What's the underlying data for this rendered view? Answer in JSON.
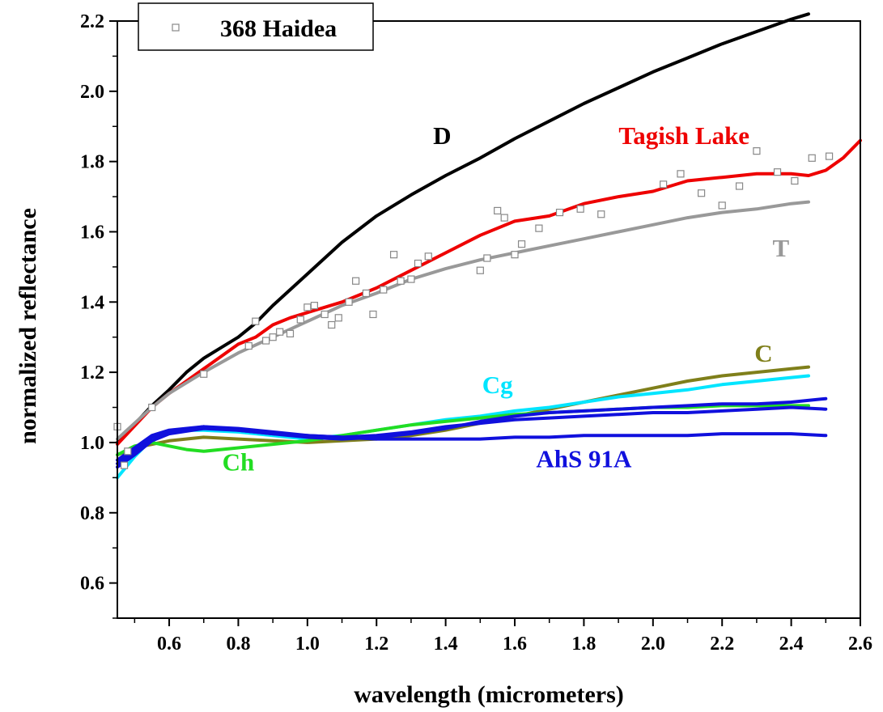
{
  "chart_data": {
    "type": "line",
    "xlabel": "wavelength (micrometers)",
    "ylabel": "normalized reflectance",
    "xlim": [
      0.45,
      2.6
    ],
    "ylim": [
      0.5,
      2.2
    ],
    "xticks": [
      0.6,
      0.8,
      1.0,
      1.2,
      1.4,
      1.6,
      1.8,
      2.0,
      2.2,
      2.4,
      2.6
    ],
    "xtick_labels": [
      "0.6",
      "0.8",
      "1.0",
      "1.2",
      "1.4",
      "1.6",
      "1.8",
      "2.0",
      "2.2",
      "2.4",
      "2.6"
    ],
    "yticks": [
      0.6,
      0.8,
      1.0,
      1.2,
      1.4,
      1.6,
      1.8,
      2.0,
      2.2
    ],
    "ytick_labels": [
      "0.6",
      "0.8",
      "1.0",
      "1.2",
      "1.4",
      "1.6",
      "1.8",
      "2.0",
      "2.2"
    ],
    "legend": {
      "position": "top-left",
      "entries": [
        {
          "name": "368 Haidea",
          "marker": "open-square",
          "color": "#888888"
        }
      ]
    },
    "scatter_series": {
      "name": "368 Haidea",
      "color": "#888888",
      "points": [
        [
          0.45,
          1.045
        ],
        [
          0.47,
          0.935
        ],
        [
          0.48,
          0.975
        ],
        [
          0.55,
          1.1
        ],
        [
          0.7,
          1.195
        ],
        [
          0.83,
          1.275
        ],
        [
          0.85,
          1.345
        ],
        [
          0.88,
          1.29
        ],
        [
          0.9,
          1.3
        ],
        [
          0.92,
          1.315
        ],
        [
          0.95,
          1.31
        ],
        [
          0.98,
          1.35
        ],
        [
          1.0,
          1.385
        ],
        [
          1.02,
          1.39
        ],
        [
          1.05,
          1.365
        ],
        [
          1.07,
          1.335
        ],
        [
          1.09,
          1.355
        ],
        [
          1.12,
          1.4
        ],
        [
          1.14,
          1.46
        ],
        [
          1.17,
          1.425
        ],
        [
          1.19,
          1.365
        ],
        [
          1.22,
          1.435
        ],
        [
          1.25,
          1.535
        ],
        [
          1.27,
          1.46
        ],
        [
          1.3,
          1.465
        ],
        [
          1.32,
          1.51
        ],
        [
          1.35,
          1.53
        ],
        [
          1.5,
          1.49
        ],
        [
          1.52,
          1.525
        ],
        [
          1.55,
          1.66
        ],
        [
          1.57,
          1.64
        ],
        [
          1.6,
          1.535
        ],
        [
          1.62,
          1.565
        ],
        [
          1.67,
          1.61
        ],
        [
          1.73,
          1.655
        ],
        [
          1.79,
          1.665
        ],
        [
          1.85,
          1.65
        ],
        [
          2.03,
          1.735
        ],
        [
          2.08,
          1.765
        ],
        [
          2.14,
          1.71
        ],
        [
          2.2,
          1.675
        ],
        [
          2.25,
          1.73
        ],
        [
          2.3,
          1.83
        ],
        [
          2.36,
          1.77
        ],
        [
          2.41,
          1.745
        ],
        [
          2.46,
          1.81
        ],
        [
          2.51,
          1.815
        ]
      ]
    },
    "series": [
      {
        "name": "D",
        "color": "#000000",
        "x": [
          0.45,
          0.55,
          0.6,
          0.65,
          0.7,
          0.75,
          0.8,
          0.85,
          0.9,
          1.0,
          1.1,
          1.2,
          1.3,
          1.4,
          1.5,
          1.6,
          1.7,
          1.8,
          1.9,
          2.0,
          2.1,
          2.2,
          2.3,
          2.4,
          2.45
        ],
        "y": [
          1.0,
          1.105,
          1.15,
          1.2,
          1.24,
          1.27,
          1.3,
          1.34,
          1.39,
          1.48,
          1.57,
          1.645,
          1.705,
          1.76,
          1.81,
          1.865,
          1.915,
          1.965,
          2.01,
          2.055,
          2.095,
          2.135,
          2.17,
          2.205,
          2.22
        ]
      },
      {
        "name": "Tagish Lake",
        "color": "#ee0000",
        "x": [
          0.45,
          0.55,
          0.6,
          0.7,
          0.8,
          0.85,
          0.9,
          0.95,
          1.0,
          1.1,
          1.2,
          1.3,
          1.4,
          1.5,
          1.6,
          1.7,
          1.8,
          1.9,
          2.0,
          2.1,
          2.2,
          2.3,
          2.4,
          2.45,
          2.5,
          2.55,
          2.6
        ],
        "y": [
          0.995,
          1.1,
          1.14,
          1.21,
          1.28,
          1.3,
          1.335,
          1.355,
          1.37,
          1.4,
          1.44,
          1.49,
          1.54,
          1.59,
          1.63,
          1.645,
          1.68,
          1.7,
          1.715,
          1.745,
          1.755,
          1.765,
          1.765,
          1.76,
          1.775,
          1.81,
          1.86
        ]
      },
      {
        "name": "T",
        "color": "#999999",
        "x": [
          0.45,
          0.55,
          0.6,
          0.7,
          0.8,
          0.9,
          1.0,
          1.1,
          1.2,
          1.3,
          1.4,
          1.5,
          1.6,
          1.7,
          1.8,
          1.9,
          2.0,
          2.1,
          2.2,
          2.3,
          2.4,
          2.45
        ],
        "y": [
          1.01,
          1.1,
          1.14,
          1.2,
          1.255,
          1.3,
          1.345,
          1.39,
          1.425,
          1.465,
          1.495,
          1.52,
          1.54,
          1.56,
          1.58,
          1.6,
          1.62,
          1.64,
          1.655,
          1.665,
          1.68,
          1.685
        ]
      },
      {
        "name": "C",
        "color": "#7f7f1a",
        "x": [
          0.45,
          0.5,
          0.6,
          0.7,
          0.8,
          0.9,
          1.0,
          1.1,
          1.2,
          1.3,
          1.4,
          1.5,
          1.6,
          1.7,
          1.8,
          1.9,
          2.0,
          2.1,
          2.2,
          2.3,
          2.4,
          2.45
        ],
        "y": [
          0.965,
          0.985,
          1.005,
          1.015,
          1.01,
          1.005,
          1.0,
          1.005,
          1.01,
          1.02,
          1.035,
          1.055,
          1.075,
          1.095,
          1.115,
          1.135,
          1.155,
          1.175,
          1.19,
          1.2,
          1.21,
          1.215
        ]
      },
      {
        "name": "Cg",
        "color": "#00e5ff",
        "x": [
          0.45,
          0.5,
          0.55,
          0.6,
          0.65,
          0.7,
          0.8,
          0.9,
          1.0,
          1.1,
          1.2,
          1.3,
          1.4,
          1.5,
          1.6,
          1.7,
          1.8,
          1.9,
          2.0,
          2.1,
          2.2,
          2.3,
          2.4,
          2.45
        ],
        "y": [
          0.9,
          0.96,
          1.01,
          1.03,
          1.035,
          1.035,
          1.03,
          1.02,
          1.01,
          1.02,
          1.035,
          1.05,
          1.065,
          1.075,
          1.09,
          1.1,
          1.115,
          1.13,
          1.14,
          1.15,
          1.165,
          1.175,
          1.185,
          1.19
        ]
      },
      {
        "name": "Ch",
        "color": "#22dd22",
        "x": [
          0.45,
          0.5,
          0.55,
          0.6,
          0.65,
          0.7,
          0.75,
          0.8,
          0.9,
          1.0,
          1.1,
          1.2,
          1.3,
          1.4,
          1.5,
          1.6,
          1.7,
          1.8,
          1.9,
          2.0,
          2.1,
          2.2,
          2.3,
          2.4,
          2.45
        ],
        "y": [
          0.965,
          0.99,
          1.0,
          0.99,
          0.98,
          0.975,
          0.98,
          0.985,
          0.995,
          1.005,
          1.02,
          1.035,
          1.05,
          1.06,
          1.07,
          1.08,
          1.085,
          1.09,
          1.095,
          1.1,
          1.1,
          1.105,
          1.105,
          1.105,
          1.105
        ]
      },
      {
        "name": "AhS 91A",
        "color": "#1010dd",
        "x": [
          0.45,
          0.5,
          0.55,
          0.6,
          0.7,
          0.8,
          0.9,
          1.0,
          1.1,
          1.2,
          1.3,
          1.4,
          1.5,
          1.6,
          1.7,
          1.8,
          1.9,
          2.0,
          2.1,
          2.2,
          2.3,
          2.4,
          2.5
        ],
        "y": [
          0.93,
          0.965,
          1.005,
          1.025,
          1.04,
          1.035,
          1.025,
          1.02,
          1.015,
          1.01,
          1.01,
          1.01,
          1.01,
          1.015,
          1.015,
          1.02,
          1.02,
          1.02,
          1.02,
          1.025,
          1.025,
          1.025,
          1.02
        ]
      },
      {
        "name": "AhS 91A",
        "color": "#1010dd",
        "x": [
          0.45,
          0.5,
          0.55,
          0.6,
          0.7,
          0.8,
          0.9,
          1.0,
          1.1,
          1.2,
          1.3,
          1.4,
          1.5,
          1.6,
          1.7,
          1.8,
          1.9,
          2.0,
          2.1,
          2.2,
          2.3,
          2.4,
          2.5
        ],
        "y": [
          0.94,
          0.975,
          1.015,
          1.03,
          1.045,
          1.04,
          1.03,
          1.02,
          1.015,
          1.02,
          1.03,
          1.045,
          1.055,
          1.065,
          1.07,
          1.075,
          1.08,
          1.085,
          1.085,
          1.09,
          1.095,
          1.1,
          1.095
        ]
      },
      {
        "name": "AhS 91A",
        "color": "#1010dd",
        "x": [
          0.45,
          0.5,
          0.55,
          0.6,
          0.7,
          0.8,
          0.9,
          1.0,
          1.1,
          1.2,
          1.3,
          1.4,
          1.5,
          1.6,
          1.7,
          1.8,
          1.9,
          2.0,
          2.1,
          2.2,
          2.3,
          2.4,
          2.5
        ],
        "y": [
          0.95,
          0.985,
          1.02,
          1.035,
          1.045,
          1.035,
          1.025,
          1.015,
          1.01,
          1.015,
          1.025,
          1.04,
          1.06,
          1.075,
          1.085,
          1.09,
          1.095,
          1.1,
          1.105,
          1.11,
          1.11,
          1.115,
          1.125
        ]
      }
    ],
    "annotations": [
      {
        "text": "D",
        "x": 1.39,
        "y": 1.85,
        "color": "#000000"
      },
      {
        "text": "Tagish Lake",
        "x": 2.09,
        "y": 1.85,
        "color": "#ee0000"
      },
      {
        "text": "T",
        "x": 2.37,
        "y": 1.53,
        "color": "#999999"
      },
      {
        "text": "C",
        "x": 2.32,
        "y": 1.23,
        "color": "#7f7f1a"
      },
      {
        "text": "Cg",
        "x": 1.55,
        "y": 1.14,
        "color": "#00e5ff"
      },
      {
        "text": "Ch",
        "x": 0.8,
        "y": 0.92,
        "color": "#22dd22"
      },
      {
        "text": "AhS 91A",
        "x": 1.8,
        "y": 0.93,
        "color": "#1010dd"
      }
    ]
  }
}
